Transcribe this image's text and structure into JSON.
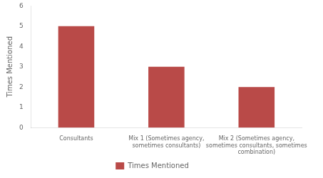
{
  "chart_data": {
    "type": "bar",
    "ylabel": "Times Mentioned",
    "categories": [
      "Consultants",
      "Mix 1 (Sometimes agency,\nsometimes consultants)",
      "Mix 2 (Sometimes agency,\nsometimes consultants, sometimes\ncombination)"
    ],
    "series": [
      {
        "name": "Times Mentioned",
        "color": "#b94a48",
        "values": [
          5,
          3,
          2
        ]
      }
    ],
    "ylim": [
      0,
      6
    ],
    "yticks": [
      0,
      1,
      2,
      3,
      4,
      5,
      6
    ],
    "grid": false,
    "legend": "bottom"
  }
}
